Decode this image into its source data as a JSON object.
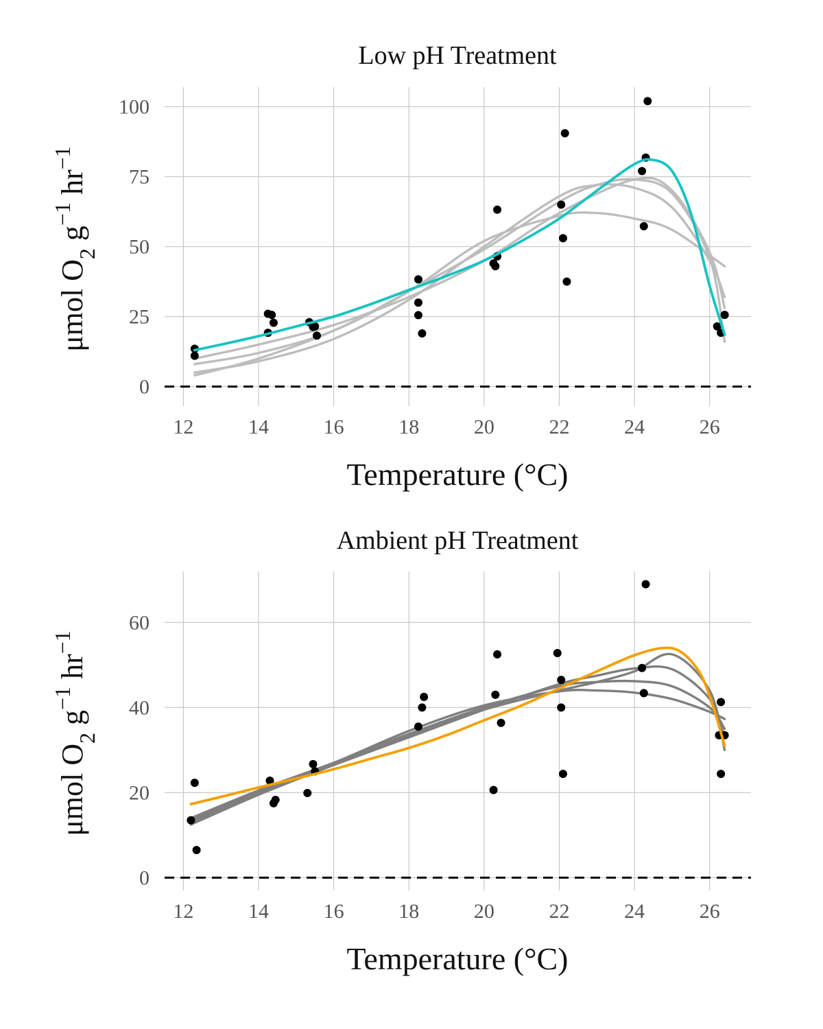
{
  "chart_data": [
    {
      "type": "scatter",
      "title": "Low pH Treatment",
      "xlabel": "Temperature (°C)",
      "ylabel": {
        "base": "μmol O",
        "sub": "2",
        "mid": " g",
        "sup1": "−1",
        "mid2": " hr",
        "sup2": "−1"
      },
      "xlim": [
        11.5,
        27.1
      ],
      "ylim": [
        -7,
        107
      ],
      "xticks": [
        12,
        14,
        16,
        18,
        20,
        22,
        24,
        26
      ],
      "yticks": [
        0,
        25,
        50,
        75,
        100
      ],
      "reference_line": {
        "y": 0,
        "style": "dashed"
      },
      "grid": true,
      "colors": {
        "points": "#000000",
        "fit": "#17c3c3",
        "bootstrap": "#bdbdbd"
      },
      "points": [
        [
          12.3,
          13.5
        ],
        [
          12.3,
          11.0
        ],
        [
          14.25,
          26.0
        ],
        [
          14.35,
          25.6
        ],
        [
          14.4,
          22.8
        ],
        [
          14.25,
          19.2
        ],
        [
          15.35,
          23.0
        ],
        [
          15.45,
          21.3
        ],
        [
          15.5,
          21.5
        ],
        [
          15.55,
          18.2
        ],
        [
          18.25,
          38.3
        ],
        [
          18.25,
          30.0
        ],
        [
          18.25,
          25.5
        ],
        [
          18.35,
          19.0
        ],
        [
          20.25,
          44.0
        ],
        [
          20.3,
          43.0
        ],
        [
          20.35,
          46.5
        ],
        [
          20.35,
          63.2
        ],
        [
          22.05,
          65.0
        ],
        [
          22.1,
          53.0
        ],
        [
          22.15,
          90.5
        ],
        [
          22.2,
          37.5
        ],
        [
          24.2,
          77.0
        ],
        [
          24.25,
          57.3
        ],
        [
          24.3,
          81.8
        ],
        [
          24.35,
          102.0
        ],
        [
          26.2,
          21.5
        ],
        [
          26.3,
          19.2
        ],
        [
          26.4,
          25.6
        ]
      ],
      "fit": {
        "x": [
          12.3,
          13,
          14,
          15,
          16,
          17,
          18,
          19,
          20,
          21,
          22,
          23,
          24,
          24.5,
          25,
          25.5,
          26,
          26.4
        ],
        "y": [
          13,
          15,
          18,
          21.5,
          25,
          29.5,
          34.5,
          39.5,
          45,
          52,
          60,
          70,
          79.5,
          81,
          77,
          62,
          36,
          18.5
        ]
      },
      "bootstrap_curves": [
        {
          "x": [
            12.3,
            14,
            16,
            18,
            20,
            22,
            23,
            24,
            25,
            26.4
          ],
          "y": [
            8,
            12,
            20,
            34,
            52,
            61,
            62,
            60,
            56,
            43
          ]
        },
        {
          "x": [
            12.3,
            14,
            16,
            18,
            20,
            22,
            23,
            24,
            25,
            26,
            26.4
          ],
          "y": [
            5,
            9,
            17,
            31,
            50,
            68,
            72,
            71,
            64,
            45,
            32
          ]
        },
        {
          "x": [
            12.3,
            14,
            16,
            18,
            20,
            22,
            23,
            24,
            25,
            26,
            26.4
          ],
          "y": [
            4,
            10,
            20,
            34,
            49,
            66,
            72,
            74,
            69,
            46,
            16
          ]
        },
        {
          "x": [
            12.3,
            14,
            16,
            18,
            20,
            22,
            24,
            25,
            26,
            26.4
          ],
          "y": [
            10,
            15,
            22,
            32,
            45,
            62,
            74,
            70,
            48,
            28
          ]
        }
      ]
    },
    {
      "type": "scatter",
      "title": "Ambient pH Treatment",
      "xlabel": "Temperature (°C)",
      "ylabel": {
        "base": "μmol O",
        "sub": "2",
        "mid": " g",
        "sup1": "−1",
        "mid2": " hr",
        "sup2": "−1"
      },
      "xlim": [
        11.5,
        27.1
      ],
      "ylim": [
        -3,
        72
      ],
      "xticks": [
        12,
        14,
        16,
        18,
        20,
        22,
        24,
        26
      ],
      "yticks": [
        0,
        20,
        40,
        60
      ],
      "reference_line": {
        "y": 0,
        "style": "dashed"
      },
      "grid": true,
      "colors": {
        "points": "#000000",
        "fit": "#f5a000",
        "bootstrap": "#7f7f7f"
      },
      "points": [
        [
          12.2,
          13.5
        ],
        [
          12.3,
          22.3
        ],
        [
          12.35,
          6.5
        ],
        [
          14.3,
          22.8
        ],
        [
          14.4,
          17.5
        ],
        [
          14.45,
          18.3
        ],
        [
          15.3,
          19.9
        ],
        [
          15.45,
          26.7
        ],
        [
          15.5,
          25.0
        ],
        [
          18.25,
          35.5
        ],
        [
          18.35,
          40.0
        ],
        [
          18.4,
          42.5
        ],
        [
          20.25,
          20.6
        ],
        [
          20.3,
          43.0
        ],
        [
          20.35,
          52.5
        ],
        [
          20.45,
          36.4
        ],
        [
          21.95,
          52.8
        ],
        [
          22.05,
          46.5
        ],
        [
          22.05,
          40.0
        ],
        [
          22.1,
          24.4
        ],
        [
          24.2,
          49.3
        ],
        [
          24.25,
          43.4
        ],
        [
          24.3,
          69.0
        ],
        [
          26.25,
          33.5
        ],
        [
          26.3,
          24.4
        ],
        [
          26.3,
          41.3
        ],
        [
          26.4,
          33.5
        ]
      ],
      "fit": {
        "x": [
          12.2,
          13,
          14,
          15,
          16,
          17,
          18,
          19,
          20,
          21,
          22,
          23,
          24,
          24.75,
          25.25,
          25.75,
          26.1,
          26.4
        ],
        "y": [
          17.3,
          19,
          21.2,
          23.3,
          25.5,
          28,
          30.5,
          33.5,
          37,
          40.5,
          44.5,
          48.5,
          52.3,
          54,
          53,
          48,
          40,
          31
        ]
      },
      "bootstrap_curves": [
        {
          "x": [
            12.2,
            14,
            16,
            18,
            20,
            22,
            23,
            24,
            25,
            26,
            26.4
          ],
          "y": [
            12.5,
            19.5,
            26.5,
            33.5,
            39.5,
            44,
            46,
            48.5,
            52.5,
            44,
            30
          ]
        },
        {
          "x": [
            12.2,
            14,
            16,
            18,
            20,
            22,
            23,
            24,
            25,
            26,
            26.4
          ],
          "y": [
            13.5,
            20.5,
            27,
            33.8,
            40,
            45,
            46,
            46.2,
            45,
            40,
            35
          ]
        },
        {
          "x": [
            12.2,
            14,
            16,
            18,
            20,
            22,
            23,
            24,
            25,
            26,
            26.4
          ],
          "y": [
            14,
            20.5,
            27,
            34.5,
            40.5,
            43.8,
            44,
            43.5,
            42,
            39,
            37.3
          ]
        },
        {
          "x": [
            12.2,
            14,
            16,
            18,
            20,
            22,
            23,
            24,
            25,
            26,
            26.4
          ],
          "y": [
            13,
            20,
            26.5,
            33,
            39.5,
            45.5,
            47.5,
            49.2,
            49,
            42,
            33
          ]
        }
      ]
    }
  ]
}
